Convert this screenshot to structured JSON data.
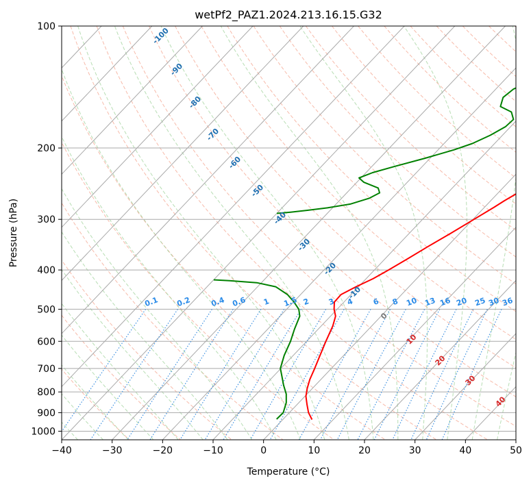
{
  "chart_data": {
    "type": "line",
    "title": "wetPf2_PAZ1.2024.213.16.15.G32",
    "xlabel": "Temperature (°C)",
    "ylabel": "Pressure (hPa)",
    "xlim": [
      -40,
      50
    ],
    "ylim": [
      1050,
      100
    ],
    "y_scale": "log",
    "x_ticks": [
      "−40",
      "−30",
      "−20",
      "−10",
      "0",
      "10",
      "20",
      "30",
      "40",
      "50"
    ],
    "y_ticks": [
      {
        "p": 100,
        "label": "100"
      },
      {
        "p": 200,
        "label": "200"
      },
      {
        "p": 300,
        "label": "300"
      },
      {
        "p": 400,
        "label": "400"
      },
      {
        "p": 500,
        "label": "500"
      },
      {
        "p": 600,
        "label": "600"
      },
      {
        "p": 700,
        "label": "700"
      },
      {
        "p": 800,
        "label": "800"
      },
      {
        "p": 900,
        "label": "900"
      },
      {
        "p": 1000,
        "label": "1000"
      }
    ],
    "grid": true,
    "skew": "isotherms slanted (skew-T log-p)",
    "series": [
      {
        "color": "#ff0000",
        "points": [
          [
            5.8,
            936
          ],
          [
            3.8,
            900
          ],
          [
            2.0,
            860
          ],
          [
            0.2,
            820
          ],
          [
            -1.0,
            785
          ],
          [
            -2.2,
            745
          ],
          [
            -3.3,
            700
          ],
          [
            -4.7,
            650
          ],
          [
            -6.2,
            600
          ],
          [
            -7.7,
            550
          ],
          [
            -9.0,
            520
          ],
          [
            -10.6,
            500
          ],
          [
            -11.9,
            480
          ],
          [
            -12.0,
            460
          ],
          [
            -10.5,
            440
          ],
          [
            -8.6,
            420
          ],
          [
            -7.2,
            400
          ],
          [
            -5.5,
            375
          ],
          [
            -3.8,
            350
          ],
          [
            -1.8,
            325
          ],
          [
            0.2,
            300
          ],
          [
            1.9,
            280
          ],
          [
            2.7,
            270
          ],
          [
            3.7,
            260
          ],
          [
            4.7,
            250
          ],
          [
            6.7,
            230
          ],
          [
            7.5,
            220
          ],
          [
            8.1,
            210
          ],
          [
            8.6,
            200
          ],
          [
            9.6,
            190
          ],
          [
            11.1,
            180
          ],
          [
            12.9,
            170
          ],
          [
            14.4,
            160
          ],
          [
            15.4,
            150
          ],
          [
            16.9,
            140
          ],
          [
            18.7,
            130
          ],
          [
            20.4,
            120
          ],
          [
            22.6,
            110
          ],
          [
            23.8,
            100
          ]
        ]
      },
      {
        "color": "#008000",
        "points": [
          [
            -1.3,
            934
          ],
          [
            -1.2,
            900
          ],
          [
            -2.5,
            850
          ],
          [
            -4.1,
            810
          ],
          [
            -6.3,
            770
          ],
          [
            -8.7,
            725
          ],
          [
            -10.1,
            700
          ],
          [
            -11.8,
            650
          ],
          [
            -13.2,
            600
          ],
          [
            -14.7,
            560
          ],
          [
            -16.1,
            520
          ],
          [
            -17.6,
            500
          ],
          [
            -19.9,
            480
          ],
          [
            -22.6,
            460
          ],
          [
            -26.4,
            440
          ],
          [
            -30.9,
            430
          ],
          [
            -36.7,
            425
          ],
          [
            -40.0,
            423
          ]
        ]
      },
      {
        "color": "#008000",
        "points": [
          [
            -40.0,
            290
          ],
          [
            -37.5,
            288
          ],
          [
            -34.5,
            285
          ],
          [
            -31.0,
            281
          ],
          [
            -27.2,
            275
          ],
          [
            -24.5,
            266
          ],
          [
            -23.5,
            258
          ],
          [
            -24.7,
            251
          ],
          [
            -28.6,
            243
          ],
          [
            -30.4,
            237
          ],
          [
            -28.7,
            230
          ],
          [
            -25.5,
            222
          ],
          [
            -21.0,
            212
          ],
          [
            -16.8,
            202
          ],
          [
            -14.4,
            195
          ],
          [
            -12.4,
            186
          ],
          [
            -11.0,
            177
          ],
          [
            -10.8,
            170
          ],
          [
            -12.6,
            163
          ],
          [
            -15.8,
            158
          ],
          [
            -17.0,
            150
          ],
          [
            -16.5,
            143
          ],
          [
            -13.6,
            135
          ],
          [
            -10.6,
            127
          ],
          [
            -9.6,
            120
          ],
          [
            -9.7,
            113
          ],
          [
            -11.2,
            106
          ],
          [
            -13.4,
            100
          ]
        ]
      }
    ],
    "isotherm_labels": [
      "-100",
      "-90",
      "-80",
      "-70",
      "-60",
      "-50",
      "-40",
      "-30",
      "-20",
      "-10",
      "0",
      "10",
      "20",
      "30",
      "40"
    ],
    "mixing_ratio_labels": [
      "0.1",
      "0.2",
      "0.4",
      "0.6",
      "1",
      "1.5",
      "2",
      "3",
      "4",
      "6",
      "8",
      "10",
      "13",
      "16",
      "20",
      "25",
      "30",
      "36"
    ]
  }
}
